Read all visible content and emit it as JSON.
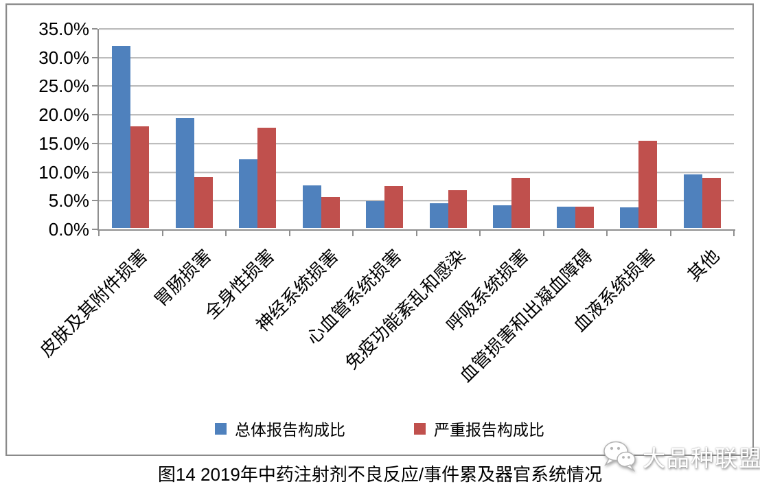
{
  "chart_data": {
    "type": "bar",
    "title": "图14 2019年中药注射剂不良反应/事件累及器官系统情况",
    "categories": [
      "皮肤及其附件损害",
      "胃肠损害",
      "全身性损害",
      "神经系统损害",
      "心血管系统损害",
      "免疫功能紊乱和感染",
      "呼吸系统损害",
      "血管损害和出凝血障碍",
      "血液系统损害",
      "其他"
    ],
    "series": [
      {
        "name": "总体报告构成比",
        "color": "#4F81BD",
        "values": [
          31.8,
          19.2,
          12.0,
          7.4,
          4.7,
          4.3,
          3.9,
          3.7,
          3.6,
          9.3
        ]
      },
      {
        "name": "严重报告构成比",
        "color": "#C0504D",
        "values": [
          17.8,
          8.9,
          17.5,
          5.4,
          7.3,
          6.6,
          8.7,
          3.7,
          15.2,
          8.8
        ]
      }
    ],
    "ylim": [
      0,
      35
    ],
    "ytick_step": 5,
    "ytick_labels": [
      "0.0%",
      "5.0%",
      "10.0%",
      "15.0%",
      "20.0%",
      "25.0%",
      "30.0%",
      "35.0%"
    ],
    "grid": true,
    "legend_position": "bottom-center",
    "xlabel": "",
    "ylabel": ""
  },
  "caption": "图14 2019年中药注射剂不良反应/事件累及器官系统情况",
  "watermark": {
    "icon": "wechat-chat-bubbles-icon",
    "text": "大品种联盟",
    "text_color": "#ffffff"
  },
  "colors": {
    "gridline": "#bdbdbd",
    "axis": "#8f8f8f",
    "border": "#8a8a8a"
  }
}
